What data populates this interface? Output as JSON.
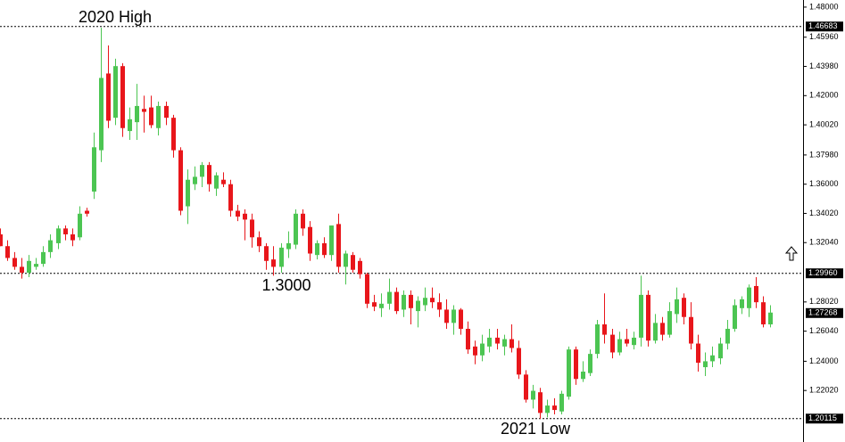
{
  "chart_data": {
    "type": "candlestick",
    "up_color": "#4cc552",
    "down_color": "#e8161b",
    "ylim": [
      1.1853,
      1.4848
    ],
    "yticks": [
      {
        "value": 1.48,
        "label": "1.48000"
      },
      {
        "value": 1.4596,
        "label": "1.45960"
      },
      {
        "value": 1.4398,
        "label": "1.43980"
      },
      {
        "value": 1.42,
        "label": "1.42000"
      },
      {
        "value": 1.4002,
        "label": "1.40020"
      },
      {
        "value": 1.3798,
        "label": "1.37980"
      },
      {
        "value": 1.36,
        "label": "1.36000"
      },
      {
        "value": 1.3402,
        "label": "1.34020"
      },
      {
        "value": 1.3204,
        "label": "1.32040"
      },
      {
        "value": 1.2802,
        "label": "1.28020"
      },
      {
        "value": 1.2604,
        "label": "1.26040"
      },
      {
        "value": 1.24,
        "label": "1.24000"
      },
      {
        "value": 1.2202,
        "label": "1.22020"
      }
    ],
    "levels": [
      {
        "value": 1.46683,
        "label": "1.46683",
        "line": true
      },
      {
        "value": 1.2996,
        "label": "1.29960",
        "line": true
      },
      {
        "value": 1.27268,
        "label": "1.27268",
        "line": false
      },
      {
        "value": 1.20115,
        "label": "1.20115",
        "line": true
      }
    ],
    "annotations": [
      "2020 High",
      "1.3000",
      "2021 Low"
    ],
    "open": [
      1.326,
      1.318,
      1.31,
      1.304,
      1.3,
      1.304,
      1.306,
      1.314,
      1.32,
      1.33,
      1.326,
      1.324,
      1.342,
      1.355,
      1.383,
      1.435,
      1.405,
      1.44,
      1.396,
      1.402,
      1.411,
      1.412,
      1.398,
      1.413,
      1.405,
      1.383,
      1.345,
      1.36,
      1.365,
      1.373,
      1.357,
      1.363,
      1.36,
      1.342,
      1.34,
      1.336,
      1.324,
      1.318,
      1.309,
      1.304,
      1.316,
      1.319,
      1.34,
      1.331,
      1.312,
      1.32,
      1.312,
      1.333,
      1.304,
      1.312,
      1.308,
      1.299,
      1.28,
      1.276,
      1.279,
      1.287,
      1.275,
      1.285,
      1.274,
      1.278,
      1.283,
      1.28,
      1.275,
      1.266,
      1.275,
      1.262,
      1.25,
      1.244,
      1.25,
      1.256,
      1.25,
      1.255,
      1.249,
      1.231,
      1.214,
      1.219,
      1.205,
      1.21,
      1.206,
      1.216,
      1.248,
      1.228,
      1.232,
      1.245,
      1.265,
      1.258,
      1.246,
      1.255,
      1.251,
      1.256,
      1.285,
      1.254,
      1.266,
      1.258,
      1.272,
      1.283,
      1.27,
      1.252,
      1.236,
      1.24,
      1.242,
      1.252,
      1.262,
      1.276,
      1.276,
      1.291,
      1.28,
      1.265
    ],
    "high": [
      1.33,
      1.322,
      1.314,
      1.31,
      1.312,
      1.31,
      1.318,
      1.326,
      1.332,
      1.332,
      1.33,
      1.345,
      1.344,
      1.395,
      1.466,
      1.454,
      1.445,
      1.442,
      1.412,
      1.428,
      1.42,
      1.42,
      1.416,
      1.416,
      1.407,
      1.385,
      1.37,
      1.372,
      1.375,
      1.375,
      1.368,
      1.368,
      1.363,
      1.346,
      1.343,
      1.34,
      1.328,
      1.32,
      1.318,
      1.32,
      1.328,
      1.343,
      1.343,
      1.335,
      1.322,
      1.324,
      1.332,
      1.34,
      1.315,
      1.314,
      1.31,
      1.3,
      1.285,
      1.286,
      1.296,
      1.29,
      1.288,
      1.288,
      1.284,
      1.29,
      1.29,
      1.286,
      1.282,
      1.278,
      1.276,
      1.267,
      1.254,
      1.258,
      1.262,
      1.262,
      1.258,
      1.265,
      1.254,
      1.234,
      1.224,
      1.222,
      1.214,
      1.215,
      1.22,
      1.25,
      1.25,
      1.24,
      1.248,
      1.268,
      1.286,
      1.262,
      1.26,
      1.262,
      1.26,
      1.298,
      1.288,
      1.272,
      1.27,
      1.28,
      1.29,
      1.286,
      1.28,
      1.258,
      1.246,
      1.25,
      1.256,
      1.268,
      1.282,
      1.284,
      1.292,
      1.297,
      1.284,
      1.278
    ],
    "low": [
      1.318,
      1.308,
      1.302,
      1.296,
      1.297,
      1.302,
      1.304,
      1.31,
      1.316,
      1.322,
      1.318,
      1.322,
      1.338,
      1.35,
      1.375,
      1.398,
      1.4,
      1.392,
      1.39,
      1.39,
      1.395,
      1.398,
      1.393,
      1.4,
      1.378,
      1.339,
      1.333,
      1.356,
      1.358,
      1.355,
      1.352,
      1.358,
      1.338,
      1.335,
      1.322,
      1.317,
      1.314,
      1.302,
      1.298,
      1.3,
      1.31,
      1.316,
      1.325,
      1.308,
      1.309,
      1.31,
      1.308,
      1.3,
      1.292,
      1.3,
      1.296,
      1.276,
      1.274,
      1.27,
      1.275,
      1.272,
      1.27,
      1.265,
      1.263,
      1.274,
      1.276,
      1.27,
      1.262,
      1.258,
      1.258,
      1.245,
      1.238,
      1.24,
      1.246,
      1.248,
      1.244,
      1.246,
      1.228,
      1.212,
      1.208,
      1.201,
      1.202,
      1.204,
      1.204,
      1.214,
      1.224,
      1.226,
      1.23,
      1.242,
      1.252,
      1.242,
      1.244,
      1.25,
      1.248,
      1.25,
      1.25,
      1.252,
      1.254,
      1.256,
      1.266,
      1.265,
      1.248,
      1.233,
      1.23,
      1.236,
      1.238,
      1.248,
      1.26,
      1.272,
      1.27,
      1.276,
      1.263,
      1.263
    ],
    "close": [
      1.318,
      1.31,
      1.304,
      1.3,
      1.308,
      1.306,
      1.314,
      1.322,
      1.33,
      1.326,
      1.322,
      1.34,
      1.34,
      1.385,
      1.432,
      1.403,
      1.44,
      1.398,
      1.404,
      1.413,
      1.409,
      1.4,
      1.413,
      1.405,
      1.383,
      1.342,
      1.363,
      1.365,
      1.373,
      1.36,
      1.366,
      1.36,
      1.342,
      1.338,
      1.336,
      1.324,
      1.318,
      1.308,
      1.304,
      1.317,
      1.32,
      1.34,
      1.33,
      1.313,
      1.32,
      1.312,
      1.332,
      1.304,
      1.313,
      1.302,
      1.299,
      1.279,
      1.277,
      1.279,
      1.287,
      1.274,
      1.285,
      1.276,
      1.281,
      1.283,
      1.28,
      1.275,
      1.266,
      1.275,
      1.262,
      1.248,
      1.244,
      1.252,
      1.256,
      1.252,
      1.255,
      1.249,
      1.231,
      1.214,
      1.22,
      1.205,
      1.21,
      1.207,
      1.218,
      1.248,
      1.228,
      1.233,
      1.245,
      1.265,
      1.258,
      1.246,
      1.255,
      1.252,
      1.256,
      1.285,
      1.254,
      1.266,
      1.258,
      1.274,
      1.282,
      1.27,
      1.252,
      1.239,
      1.24,
      1.244,
      1.252,
      1.262,
      1.278,
      1.282,
      1.29,
      1.28,
      1.265,
      1.273
    ]
  }
}
